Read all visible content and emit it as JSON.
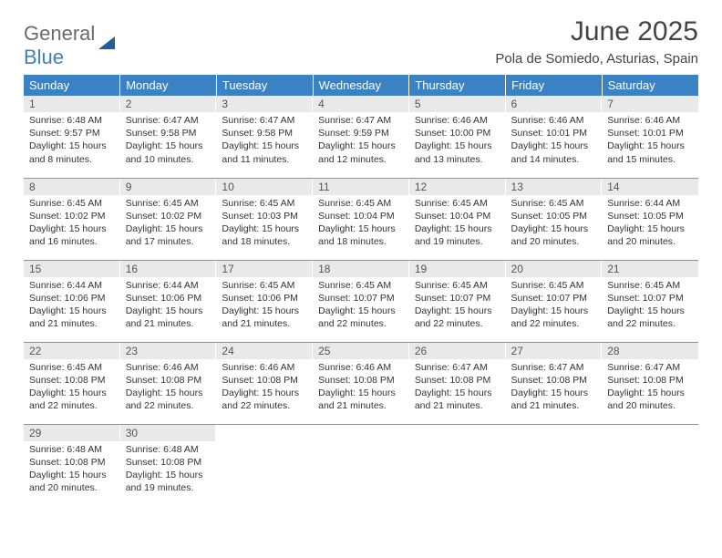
{
  "logo": {
    "text1": "General",
    "text2": "Blue"
  },
  "title": "June 2025",
  "location": "Pola de Somiedo, Asturias, Spain",
  "colors": {
    "header_bg": "#3b82c4",
    "header_text": "#ffffff",
    "daynum_bg": "#e9e9e9",
    "daynum_text": "#555555",
    "body_text": "#333333",
    "rule": "#7a99b5",
    "logo_gray": "#6b6b6b",
    "logo_blue": "#3b82c4",
    "logo_shape": "#1f5f9e"
  },
  "weekdays": [
    "Sunday",
    "Monday",
    "Tuesday",
    "Wednesday",
    "Thursday",
    "Friday",
    "Saturday"
  ],
  "weeks": [
    [
      {
        "n": "1",
        "sr": "6:48 AM",
        "ss": "9:57 PM",
        "dl": "15 hours and 8 minutes."
      },
      {
        "n": "2",
        "sr": "6:47 AM",
        "ss": "9:58 PM",
        "dl": "15 hours and 10 minutes."
      },
      {
        "n": "3",
        "sr": "6:47 AM",
        "ss": "9:58 PM",
        "dl": "15 hours and 11 minutes."
      },
      {
        "n": "4",
        "sr": "6:47 AM",
        "ss": "9:59 PM",
        "dl": "15 hours and 12 minutes."
      },
      {
        "n": "5",
        "sr": "6:46 AM",
        "ss": "10:00 PM",
        "dl": "15 hours and 13 minutes."
      },
      {
        "n": "6",
        "sr": "6:46 AM",
        "ss": "10:01 PM",
        "dl": "15 hours and 14 minutes."
      },
      {
        "n": "7",
        "sr": "6:46 AM",
        "ss": "10:01 PM",
        "dl": "15 hours and 15 minutes."
      }
    ],
    [
      {
        "n": "8",
        "sr": "6:45 AM",
        "ss": "10:02 PM",
        "dl": "15 hours and 16 minutes."
      },
      {
        "n": "9",
        "sr": "6:45 AM",
        "ss": "10:02 PM",
        "dl": "15 hours and 17 minutes."
      },
      {
        "n": "10",
        "sr": "6:45 AM",
        "ss": "10:03 PM",
        "dl": "15 hours and 18 minutes."
      },
      {
        "n": "11",
        "sr": "6:45 AM",
        "ss": "10:04 PM",
        "dl": "15 hours and 18 minutes."
      },
      {
        "n": "12",
        "sr": "6:45 AM",
        "ss": "10:04 PM",
        "dl": "15 hours and 19 minutes."
      },
      {
        "n": "13",
        "sr": "6:45 AM",
        "ss": "10:05 PM",
        "dl": "15 hours and 20 minutes."
      },
      {
        "n": "14",
        "sr": "6:44 AM",
        "ss": "10:05 PM",
        "dl": "15 hours and 20 minutes."
      }
    ],
    [
      {
        "n": "15",
        "sr": "6:44 AM",
        "ss": "10:06 PM",
        "dl": "15 hours and 21 minutes."
      },
      {
        "n": "16",
        "sr": "6:44 AM",
        "ss": "10:06 PM",
        "dl": "15 hours and 21 minutes."
      },
      {
        "n": "17",
        "sr": "6:45 AM",
        "ss": "10:06 PM",
        "dl": "15 hours and 21 minutes."
      },
      {
        "n": "18",
        "sr": "6:45 AM",
        "ss": "10:07 PM",
        "dl": "15 hours and 22 minutes."
      },
      {
        "n": "19",
        "sr": "6:45 AM",
        "ss": "10:07 PM",
        "dl": "15 hours and 22 minutes."
      },
      {
        "n": "20",
        "sr": "6:45 AM",
        "ss": "10:07 PM",
        "dl": "15 hours and 22 minutes."
      },
      {
        "n": "21",
        "sr": "6:45 AM",
        "ss": "10:07 PM",
        "dl": "15 hours and 22 minutes."
      }
    ],
    [
      {
        "n": "22",
        "sr": "6:45 AM",
        "ss": "10:08 PM",
        "dl": "15 hours and 22 minutes."
      },
      {
        "n": "23",
        "sr": "6:46 AM",
        "ss": "10:08 PM",
        "dl": "15 hours and 22 minutes."
      },
      {
        "n": "24",
        "sr": "6:46 AM",
        "ss": "10:08 PM",
        "dl": "15 hours and 22 minutes."
      },
      {
        "n": "25",
        "sr": "6:46 AM",
        "ss": "10:08 PM",
        "dl": "15 hours and 21 minutes."
      },
      {
        "n": "26",
        "sr": "6:47 AM",
        "ss": "10:08 PM",
        "dl": "15 hours and 21 minutes."
      },
      {
        "n": "27",
        "sr": "6:47 AM",
        "ss": "10:08 PM",
        "dl": "15 hours and 21 minutes."
      },
      {
        "n": "28",
        "sr": "6:47 AM",
        "ss": "10:08 PM",
        "dl": "15 hours and 20 minutes."
      }
    ],
    [
      {
        "n": "29",
        "sr": "6:48 AM",
        "ss": "10:08 PM",
        "dl": "15 hours and 20 minutes."
      },
      {
        "n": "30",
        "sr": "6:48 AM",
        "ss": "10:08 PM",
        "dl": "15 hours and 19 minutes."
      },
      null,
      null,
      null,
      null,
      null
    ]
  ],
  "labels": {
    "sunrise": "Sunrise:",
    "sunset": "Sunset:",
    "daylight": "Daylight:"
  }
}
